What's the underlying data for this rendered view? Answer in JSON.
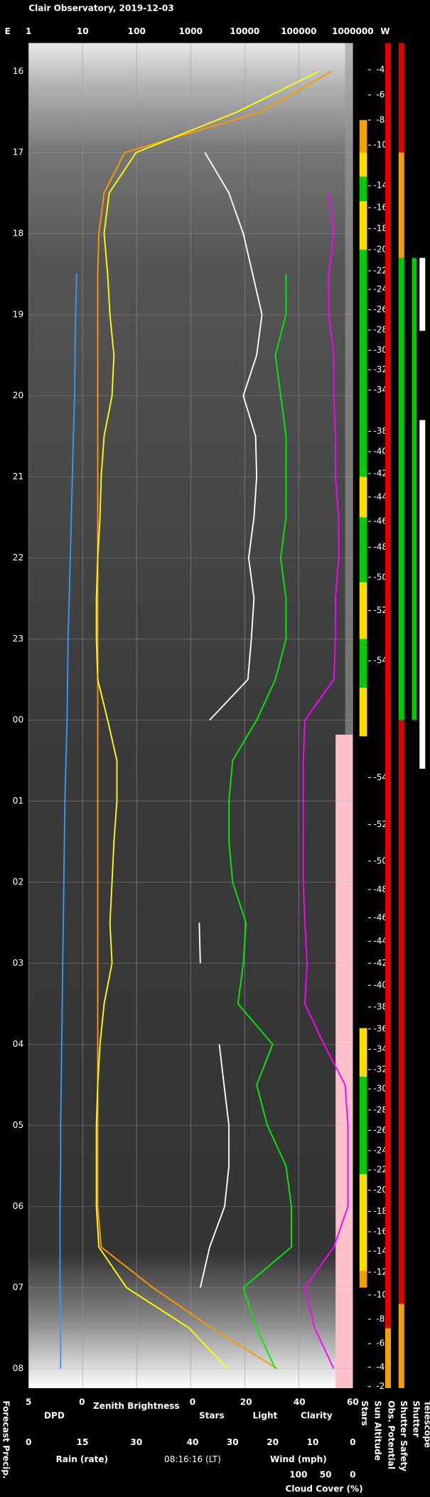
{
  "chart_data": {
    "type": "line",
    "title": "Clair Observatory, 2019-12-03",
    "x_label_left": "E",
    "x_label_right": "W",
    "xscale": "log",
    "xlim": [
      1,
      1000000
    ],
    "xticks": [
      1,
      10,
      100,
      1000,
      10000,
      100000,
      1000000
    ],
    "ylim": [
      15.65,
      32.24
    ],
    "yticks": [
      16,
      17,
      18,
      19,
      20,
      21,
      22,
      23,
      {
        "value": 24,
        "label": "00"
      },
      {
        "value": 25,
        "label": "01"
      },
      {
        "value": 26,
        "label": "02"
      },
      {
        "value": 27,
        "label": "03"
      },
      {
        "value": 28,
        "label": "04"
      },
      {
        "value": 29,
        "label": "05"
      },
      {
        "value": 30,
        "label": "06"
      },
      {
        "value": 31,
        "label": "07"
      },
      {
        "value": 32,
        "label": "08"
      }
    ],
    "grid": true,
    "x": [
      16,
      16.5,
      17,
      17.5,
      18,
      18.5,
      19,
      19.5,
      20,
      20.5,
      21,
      21.5,
      22,
      22.5,
      23,
      23.5,
      24,
      24.5,
      25,
      25.5,
      26,
      26.5,
      27,
      27.5,
      28,
      28.5,
      29,
      29.5,
      30,
      30.5,
      31,
      31.5,
      32
    ],
    "series": [
      {
        "color": "#ff9900",
        "axis": "log",
        "values": [
          400000,
          20000,
          60,
          25,
          20,
          19,
          19,
          19,
          19,
          19,
          19,
          19,
          19,
          19,
          19,
          19,
          19,
          19,
          19,
          19,
          19,
          19,
          19,
          19,
          19,
          19,
          19,
          19,
          19,
          22,
          200,
          2500,
          40000
        ]
      },
      {
        "color": "#ffff00",
        "axis": "log",
        "values": [
          235000,
          7300,
          98,
          31,
          25,
          29,
          32,
          38,
          35,
          25,
          22,
          21,
          19,
          18,
          18,
          19,
          29,
          43,
          43,
          38,
          35,
          32,
          35,
          25,
          21,
          19,
          18,
          18,
          18,
          20,
          65,
          940,
          4800
        ]
      },
      {
        "color": "#3399ff",
        "axis": "dpd",
        "values": [
          null,
          null,
          null,
          null,
          null,
          0.5,
          0.6,
          0.65,
          0.7,
          0.8,
          0.9,
          1.0,
          1.1,
          1.2,
          1.3,
          1.35,
          1.4,
          1.5,
          1.6,
          1.65,
          1.7,
          1.75,
          1.8,
          1.85,
          1.9,
          1.95,
          2.0,
          2.0,
          2.05,
          2.05,
          2.05,
          2.0,
          2.0
        ]
      },
      {
        "color": "#ffffff",
        "axis": "stars",
        "values": [
          null,
          null,
          4.6,
          13.6,
          19,
          22.5,
          26,
          24,
          19,
          23.6,
          24,
          23,
          21,
          23,
          22,
          20.7,
          6.4,
          null,
          null,
          null,
          null,
          2.5,
          2.9,
          null,
          10,
          11.8,
          13.6,
          13.6,
          12,
          6.4,
          2.9,
          null,
          null
        ]
      },
      {
        "color": "#00ee00",
        "axis": "stars",
        "values": [
          null,
          null,
          null,
          null,
          null,
          35,
          35,
          31,
          33,
          35,
          35,
          35,
          33,
          35,
          35,
          31,
          24,
          15,
          13.6,
          13.6,
          15,
          20,
          19,
          17,
          30,
          24,
          28,
          35,
          37,
          37,
          19,
          24,
          31
        ]
      },
      {
        "color": "#ff00ff",
        "axis": "cloud",
        "values": [
          null,
          null,
          null,
          44,
          35,
          44,
          44,
          35,
          35,
          32,
          32,
          26,
          26,
          32,
          32,
          35,
          88,
          91,
          91,
          91,
          91,
          88,
          84,
          88,
          53,
          14,
          9,
          9,
          9,
          35,
          88,
          70,
          35
        ]
      }
    ],
    "bottom_axes": {
      "dpd": {
        "label": "DPD",
        "color": "#3399ff",
        "lim": [
          5,
          0
        ],
        "ticks": [
          5,
          0
        ]
      },
      "rain": {
        "label": "Rain (rate)",
        "color": "#33cccc",
        "lim": [
          0,
          30
        ],
        "ticks": [
          0,
          15,
          30
        ]
      },
      "zenith": {
        "label": "Zenith Brightness",
        "color": "#ffff00"
      },
      "stars": {
        "labels": [
          {
            "text": "Stars",
            "color": "#ffffff"
          },
          {
            "text": "Light",
            "color": "#ffff00"
          },
          {
            "text": "Clarity",
            "color": "#00ee00"
          }
        ],
        "lim": [
          0,
          60
        ],
        "ticks": [
          0,
          20,
          40,
          60
        ]
      },
      "wind": {
        "label": "Wind (mph)",
        "color": "#ff6699",
        "lim": [
          40,
          0
        ],
        "ticks": [
          40,
          30,
          20,
          10,
          0
        ]
      },
      "cloud": {
        "label": "Cloud Cover (%)",
        "color": "#ff00ff",
        "lim": [
          100,
          0
        ],
        "ticks": [
          100,
          50,
          0
        ]
      }
    },
    "forecast_label": "Forecast Precip.",
    "timestamp": "08:16:16 (LT)",
    "sun_altitude": {
      "label": "Sun Altitude",
      "hours": [
        15.98,
        16.29,
        16.6,
        16.91,
        17.41,
        17.68,
        17.94,
        18.2,
        18.46,
        18.69,
        18.94,
        19.19,
        19.44,
        19.68,
        19.93,
        20.44,
        20.69,
        20.96,
        21.25,
        21.55,
        21.87,
        22.24,
        22.65,
        23.27,
        24.71,
        25.29,
        25.74,
        26.09,
        26.44,
        26.73,
        27.0,
        27.27,
        27.54,
        27.81,
        28.06,
        28.31,
        28.55,
        28.81,
        29.06,
        29.31,
        29.55,
        29.8,
        30.06,
        30.31,
        30.55,
        30.81,
        31.09,
        31.39,
        31.69,
        31.98,
        32.22
      ],
      "values": [
        -4,
        -6,
        -8,
        -10,
        -14,
        -16,
        -18,
        -20,
        -22,
        -24,
        -26,
        -28,
        -30,
        -32,
        -34,
        -38,
        -40,
        -42,
        -44,
        -46,
        -48,
        -50,
        -52,
        -54,
        -54,
        -52,
        -50,
        -48,
        -46,
        -44,
        -42,
        -40,
        -38,
        -36,
        -34,
        -32,
        -30,
        -28,
        -26,
        -24,
        -22,
        -20,
        -18,
        -16,
        -14,
        -12,
        -10,
        -8,
        -6,
        -4,
        -2
      ]
    },
    "strips": [
      {
        "label": "Stars",
        "segments": [
          {
            "from": 16.6,
            "to": 17.0,
            "color": "#f0a000"
          },
          {
            "from": 17.0,
            "to": 17.3,
            "color": "#ffdd00"
          },
          {
            "from": 17.3,
            "to": 17.6,
            "color": "#00cc00"
          },
          {
            "from": 17.6,
            "to": 18.2,
            "color": "#ffdd00"
          },
          {
            "from": 18.2,
            "to": 21.0,
            "color": "#00cc00"
          },
          {
            "from": 21.0,
            "to": 21.5,
            "color": "#ffdd00"
          },
          {
            "from": 21.5,
            "to": 22.3,
            "color": "#00cc00"
          },
          {
            "from": 22.3,
            "to": 23.0,
            "color": "#ffdd00"
          },
          {
            "from": 23.0,
            "to": 23.6,
            "color": "#00cc00"
          },
          {
            "from": 23.6,
            "to": 24.2,
            "color": "#ffdd00"
          },
          {
            "from": 27.8,
            "to": 28.4,
            "color": "#ffdd00"
          },
          {
            "from": 28.4,
            "to": 29.6,
            "color": "#00cc00"
          },
          {
            "from": 29.6,
            "to": 30.8,
            "color": "#ffdd00"
          },
          {
            "from": 30.8,
            "to": 31.0,
            "color": "#f0a000"
          }
        ]
      },
      {
        "label": "Obs. Potential",
        "segments": [
          {
            "from": 15.65,
            "to": 31.5,
            "color": "#e00000"
          },
          {
            "from": 31.5,
            "to": 32.24,
            "color": "#f0a000"
          }
        ]
      },
      {
        "label": "Shutter Safety",
        "segments": [
          {
            "from": 15.65,
            "to": 17.0,
            "color": "#e00000"
          },
          {
            "from": 17.0,
            "to": 18.3,
            "color": "#f0a000"
          },
          {
            "from": 18.3,
            "to": 24.0,
            "color": "#00cc00"
          },
          {
            "from": 24.0,
            "to": 31.2,
            "color": "#e00000"
          },
          {
            "from": 31.2,
            "to": 32.24,
            "color": "#f0a000"
          }
        ]
      },
      {
        "label": "Shutter",
        "segments": [
          {
            "from": 18.3,
            "to": 24.0,
            "color": "#00cc00"
          }
        ]
      },
      {
        "label": "Telescope",
        "segments": [
          {
            "from": 18.3,
            "to": 19.2,
            "color": "#ffffff"
          },
          {
            "from": 20.3,
            "to": 24.6,
            "color": "#ffffff"
          }
        ]
      }
    ]
  }
}
